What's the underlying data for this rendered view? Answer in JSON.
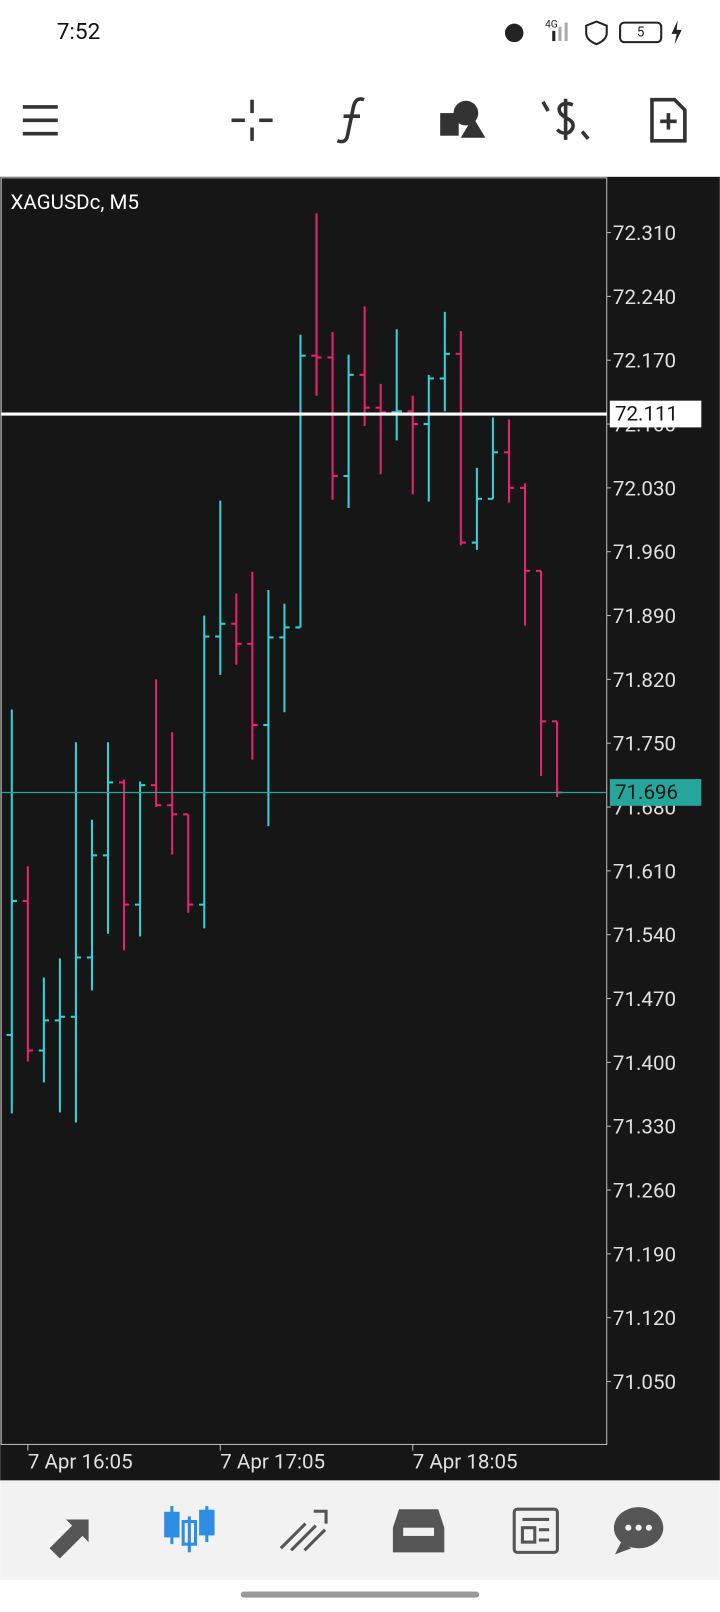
{
  "status_bar": {
    "time": "7:52",
    "network": "4G",
    "battery": "5"
  },
  "chart_data": {
    "type": "ohlc",
    "title": "XAGUSDc, M5",
    "categories": [
      null,
      "7 Apr 16:05",
      null,
      null,
      null,
      null,
      null,
      null,
      null,
      null,
      null,
      null,
      null,
      "7 Apr 17:05",
      null,
      null,
      null,
      null,
      null,
      null,
      null,
      null,
      null,
      null,
      null,
      "7 Apr 18:05",
      null,
      null,
      null,
      null,
      null,
      null,
      null,
      null,
      null
    ],
    "open": [
      71.43,
      71.577,
      71.413,
      71.446,
      71.45,
      71.515,
      71.627,
      71.707,
      71.573,
      71.704,
      71.682,
      71.672,
      71.573,
      71.867,
      71.881,
      71.859,
      71.77,
      71.866,
      71.877,
      72.175,
      72.173,
      72.043,
      72.154,
      72.118,
      72.113,
      72.114,
      72.1,
      72.15,
      72.177,
      71.97,
      72.018,
      72.069,
      72.03,
      71.939,
      71.774
    ],
    "high": [
      71.787,
      71.615,
      71.493,
      71.514,
      71.751,
      71.666,
      71.751,
      71.71,
      71.708,
      71.82,
      71.762,
      71.672,
      71.89,
      72.016,
      71.914,
      71.938,
      71.918,
      71.903,
      72.198,
      72.331,
      72.201,
      72.176,
      72.229,
      72.144,
      72.204,
      72.131,
      72.154,
      72.223,
      72.202,
      72.052,
      72.107,
      72.105,
      72.035,
      71.939,
      71.774
    ],
    "low": [
      71.344,
      71.401,
      71.378,
      71.345,
      71.334,
      71.479,
      71.541,
      71.523,
      71.538,
      71.68,
      71.628,
      71.564,
      71.547,
      71.825,
      71.836,
      71.732,
      71.659,
      71.784,
      71.877,
      72.131,
      72.017,
      72.008,
      72.098,
      72.045,
      72.082,
      72.023,
      72.015,
      72.114,
      71.967,
      71.962,
      72.018,
      72.014,
      71.879,
      71.714,
      71.691
    ],
    "close": [
      71.577,
      71.413,
      71.446,
      71.45,
      71.515,
      71.627,
      71.707,
      71.573,
      71.704,
      71.682,
      71.672,
      71.573,
      71.867,
      71.881,
      71.859,
      71.77,
      71.866,
      71.877,
      72.175,
      72.173,
      72.043,
      72.154,
      72.118,
      72.113,
      72.114,
      72.1,
      72.15,
      72.177,
      71.97,
      72.018,
      72.069,
      72.03,
      71.939,
      71.774,
      71.696
    ],
    "up_color": "#33d1d8",
    "down_color": "#e5246d",
    "ylim": [
      70.981,
      72.37
    ],
    "yticks": [
      {
        "value": 71.05,
        "label": "71.050"
      },
      {
        "value": 71.12,
        "label": "71.120"
      },
      {
        "value": 71.19,
        "label": "71.190"
      },
      {
        "value": 71.26,
        "label": "71.260"
      },
      {
        "value": 71.33,
        "label": "71.330"
      },
      {
        "value": 71.4,
        "label": "71.400"
      },
      {
        "value": 71.47,
        "label": "71.470"
      },
      {
        "value": 71.54,
        "label": "71.540"
      },
      {
        "value": 71.61,
        "label": "71.610"
      },
      {
        "value": 71.68,
        "label": "71.680"
      },
      {
        "value": 71.75,
        "label": "71.750"
      },
      {
        "value": 71.82,
        "label": "71.820"
      },
      {
        "value": 71.89,
        "label": "71.890"
      },
      {
        "value": 71.96,
        "label": "71.960"
      },
      {
        "value": 72.03,
        "label": "72.030"
      },
      {
        "value": 72.1,
        "label": "72.100"
      },
      {
        "value": 72.17,
        "label": "72.170"
      },
      {
        "value": 72.24,
        "label": "72.240"
      },
      {
        "value": 72.31,
        "label": "72.310"
      }
    ],
    "price_lines": [
      {
        "value": 72.111,
        "color": "#ffffff"
      },
      {
        "value": 71.696,
        "color": "#26a69a"
      }
    ]
  }
}
